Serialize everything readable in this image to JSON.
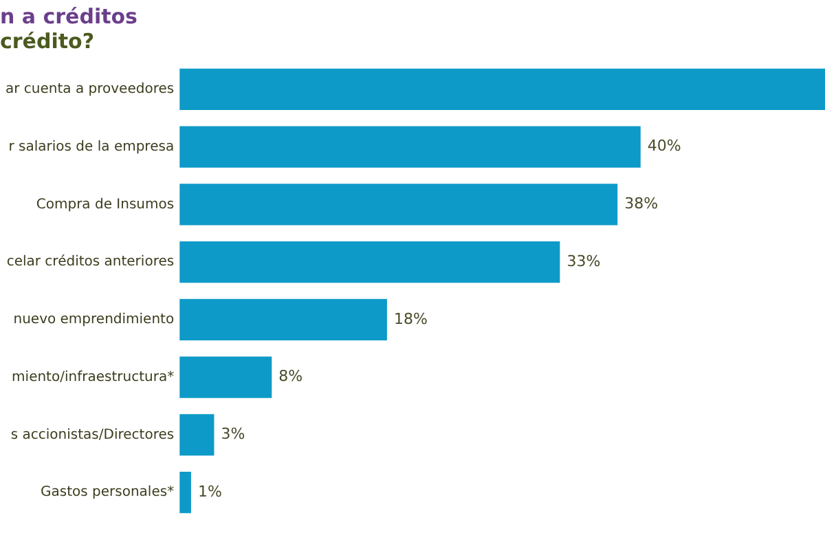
{
  "chart_data": {
    "type": "bar",
    "orientation": "horizontal",
    "title": "n a créditos",
    "subtitle": "crédito?",
    "categories": [
      "ar cuenta a proveedores",
      "r salarios de la empresa",
      "Compra de Insumos",
      "celar créditos anteriores",
      "nuevo emprendimiento",
      "miento/infraestructura*",
      "s accionistas/Directores",
      "Gastos personales*"
    ],
    "values": [
      56,
      40,
      38,
      33,
      18,
      8,
      3,
      1
    ],
    "value_labels": [
      null,
      "40%",
      "38%",
      "33%",
      "18%",
      "8%",
      "3%",
      "1%"
    ],
    "color": "#0e9ac8",
    "xlim": [
      0,
      56
    ],
    "tick_labels": "y",
    "legend": false
  }
}
